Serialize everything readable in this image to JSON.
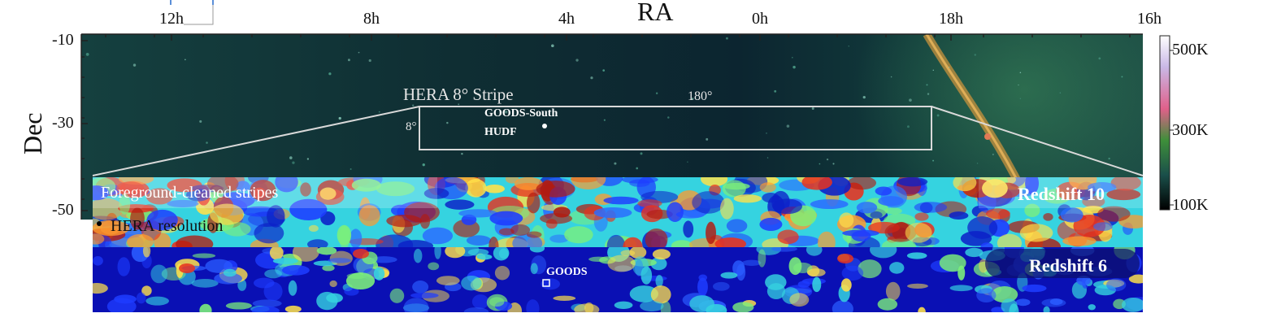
{
  "axes": {
    "x_title": "RA",
    "y_title": "Dec",
    "ra_ticks": [
      "12h",
      "8h",
      "4h",
      "0h",
      "18h",
      "16h"
    ],
    "dec_ticks": [
      "-10",
      "-30",
      "-50"
    ]
  },
  "colorbar": {
    "labels": [
      "500K",
      "300K",
      "100K"
    ],
    "colors": [
      "#ffffff",
      "#c9b8e6",
      "#e0608a",
      "#3f8f3a",
      "#1a4f4a",
      "#000000"
    ]
  },
  "sky_map": {
    "stripe_label": "HERA 8° Stripe",
    "stripe_width_label": "8°",
    "stripe_length_label": "180°",
    "field_label_1": "GOODS-South",
    "field_label_2": "HUDF"
  },
  "panels": {
    "top_left_label": "Foreground-cleaned stripes",
    "resolution_label": "HERA resolution",
    "top_right_label": "Redshift 10",
    "bottom_label": "GOODS",
    "bottom_right_label": "Redshift 6"
  }
}
